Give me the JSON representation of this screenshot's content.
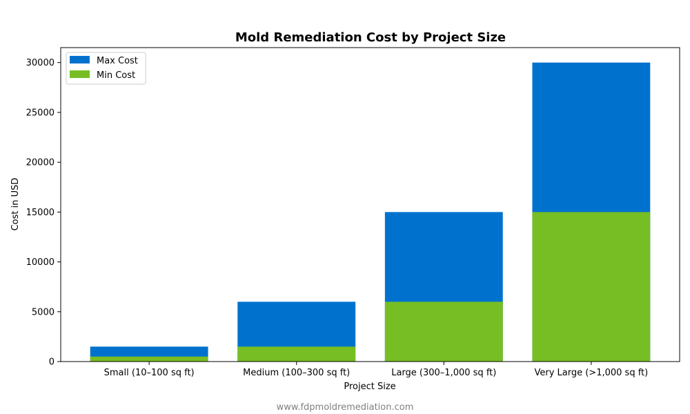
{
  "chart_data": {
    "type": "bar",
    "stacking": "overlay",
    "title": "Mold Remediation Cost by Project Size",
    "xlabel": "Project Size",
    "ylabel": "Cost in USD",
    "categories": [
      "Small (10–100 sq ft)",
      "Medium (100–300 sq ft)",
      "Large (300–1,000 sq ft)",
      "Very Large (>1,000 sq ft)"
    ],
    "series": [
      {
        "name": "Max Cost",
        "color": "#0072CE",
        "values": [
          1500,
          6000,
          15000,
          30000
        ]
      },
      {
        "name": "Min Cost",
        "color": "#77BE24",
        "values": [
          500,
          1500,
          6000,
          15000
        ]
      }
    ],
    "ylim": [
      0,
      31500
    ],
    "yticks": [
      0,
      5000,
      10000,
      15000,
      20000,
      25000,
      30000
    ],
    "legend": {
      "position": "top-left",
      "entries": [
        "Max Cost",
        "Min Cost"
      ]
    },
    "grid": false
  },
  "footer": {
    "text": "www.fdpmoldremediation.com"
  }
}
